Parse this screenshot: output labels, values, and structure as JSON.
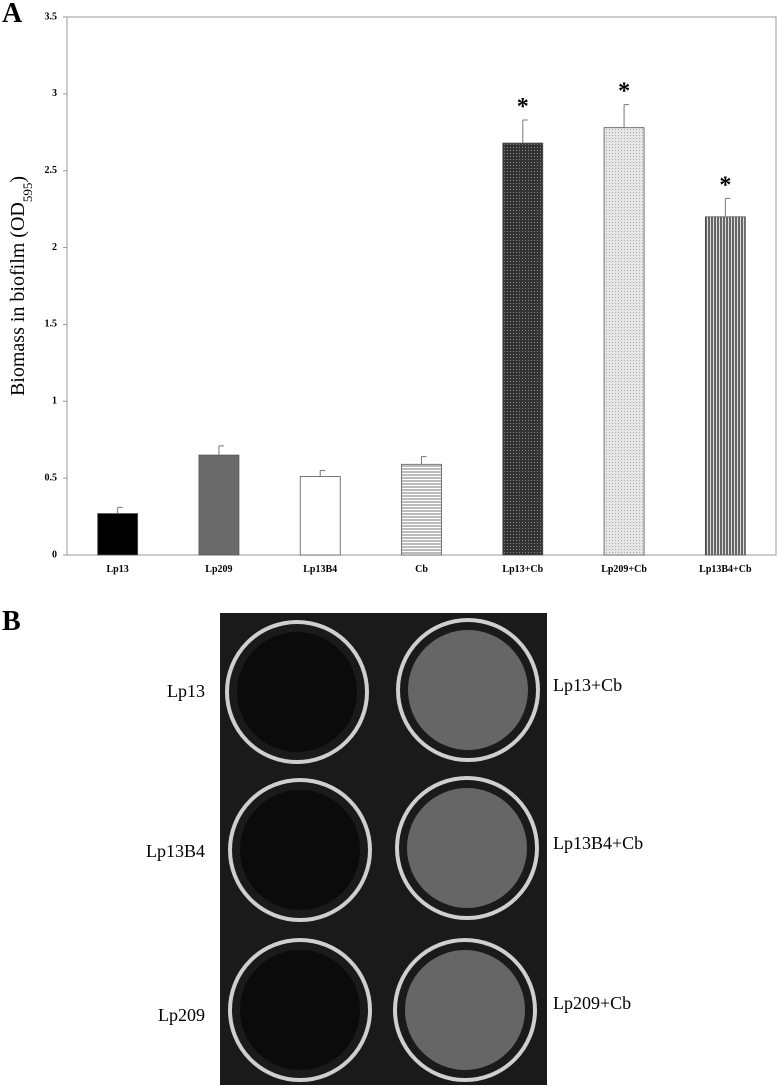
{
  "panel_labels": [
    "A",
    "B"
  ],
  "chart_data": {
    "type": "bar",
    "y_label": {
      "text": "Biomass in biofilm (OD",
      "subscript": "595",
      "suffix": ")"
    },
    "categories": [
      "Lp13",
      "Lp209",
      "Lp13B4",
      "Cb",
      "Lp13+Cb",
      "Lp209+Cb",
      "Lp13B4+Cb"
    ],
    "values": [
      0.27,
      0.65,
      0.51,
      0.59,
      2.68,
      2.78,
      2.2
    ],
    "errors": [
      0.04,
      0.06,
      0.04,
      0.05,
      0.15,
      0.15,
      0.12
    ],
    "fills": [
      "solid-black",
      "solid-gray",
      "white",
      "hlines",
      "dense-dark",
      "dots-light",
      "vlines"
    ],
    "annotations": [
      {
        "text": "*",
        "x": "Lp13+Cb"
      },
      {
        "text": "*",
        "x": "Lp209+Cb"
      },
      {
        "text": "*",
        "x": "Lp13B4+Cb"
      }
    ],
    "ylim": [
      0,
      3.5
    ],
    "yticks": [
      0,
      0.5,
      1,
      1.5,
      2,
      2.5,
      3,
      3.5
    ],
    "grid": false
  },
  "photo": {
    "left_labels": [
      "Lp13",
      "Lp13B4",
      "Lp209"
    ],
    "right_labels": [
      "Lp13+Cb",
      "Lp13B4+Cb",
      "Lp209+Cb"
    ]
  }
}
